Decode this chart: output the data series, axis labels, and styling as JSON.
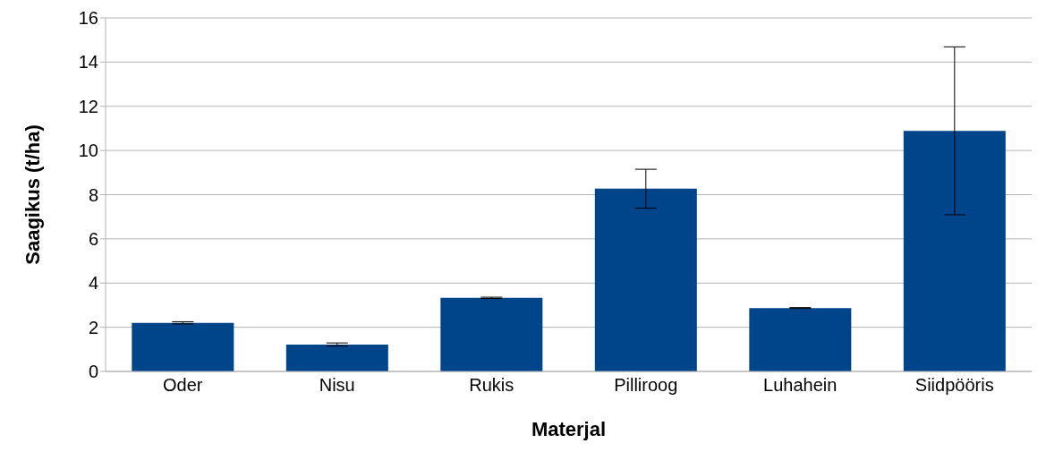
{
  "chart_data": {
    "type": "bar",
    "xlabel": "Materjal",
    "ylabel": "Saagikus (t/ha)",
    "categories": [
      "Oder",
      "Nisu",
      "Rukis",
      "Pilliroog",
      "Luhahein",
      "Siidpööris"
    ],
    "values": [
      2.2,
      1.22,
      3.33,
      8.27,
      2.87,
      10.89
    ],
    "errors": [
      0.05,
      0.07,
      0.03,
      0.88,
      0.02,
      3.8
    ],
    "color": "#00448a",
    "ylim": [
      0,
      16
    ],
    "yticks": [
      0,
      2,
      4,
      6,
      8,
      10,
      12,
      14,
      16
    ],
    "grid": "y",
    "legend": false
  }
}
